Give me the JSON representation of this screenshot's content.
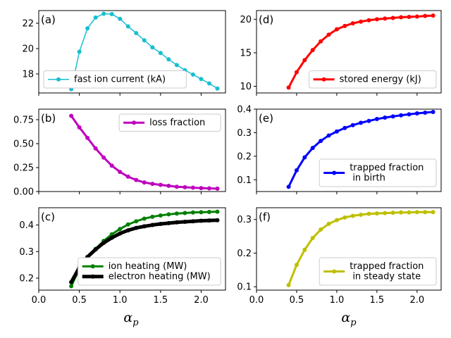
{
  "figure": {
    "x_axis_label": "α",
    "x_axis_label_sub": "p"
  },
  "chart_data": [
    {
      "id": "a",
      "panel_label": "(a)",
      "type": "line",
      "xlim": [
        0,
        2.3
      ],
      "ylim": [
        16.5,
        23.0
      ],
      "xticks": [
        0.0,
        0.5,
        1.0,
        1.5,
        2.0
      ],
      "xtick_labels": [
        "0.0",
        "0.5",
        "1.0",
        "1.5",
        "2.0"
      ],
      "yticks": [
        18,
        20,
        22
      ],
      "ytick_labels": [
        "18",
        "20",
        "22"
      ],
      "show_xtick_labels": false,
      "legend_position": "lower-left",
      "series": [
        {
          "name": "fast ion current (kA)",
          "color": "#17becf",
          "linewidth": 1.5,
          "marker_size": 3,
          "x": [
            0.4,
            0.5,
            0.6,
            0.7,
            0.8,
            0.9,
            1.0,
            1.1,
            1.2,
            1.3,
            1.4,
            1.5,
            1.6,
            1.7,
            1.8,
            1.9,
            2.0,
            2.1,
            2.2
          ],
          "y": [
            16.8,
            19.75,
            21.6,
            22.45,
            22.75,
            22.72,
            22.35,
            21.75,
            21.22,
            20.65,
            20.1,
            19.65,
            19.15,
            18.7,
            18.3,
            17.95,
            17.6,
            17.25,
            16.85
          ]
        }
      ]
    },
    {
      "id": "d",
      "panel_label": "(d)",
      "type": "line",
      "xlim": [
        0,
        2.3
      ],
      "ylim": [
        9.0,
        21.3
      ],
      "xticks": [
        0.0,
        0.5,
        1.0,
        1.5,
        2.0
      ],
      "xtick_labels": [
        "0.0",
        "0.5",
        "1.0",
        "1.5",
        "2.0"
      ],
      "yticks": [
        10,
        15,
        20
      ],
      "ytick_labels": [
        "10",
        "15",
        "20"
      ],
      "show_xtick_labels": false,
      "legend_position": "lower-right",
      "series": [
        {
          "name": "stored energy (kJ)",
          "color": "#ff0000",
          "linewidth": 3,
          "marker_size": 3,
          "x": [
            0.4,
            0.5,
            0.6,
            0.7,
            0.8,
            0.9,
            1.0,
            1.1,
            1.2,
            1.3,
            1.4,
            1.5,
            1.6,
            1.7,
            1.8,
            1.9,
            2.0,
            2.1,
            2.2
          ],
          "y": [
            9.8,
            12.1,
            13.9,
            15.4,
            16.7,
            17.7,
            18.5,
            19.0,
            19.4,
            19.65,
            19.85,
            20.0,
            20.1,
            20.2,
            20.3,
            20.35,
            20.4,
            20.5,
            20.55
          ]
        }
      ]
    },
    {
      "id": "b",
      "panel_label": "(b)",
      "type": "line",
      "xlim": [
        0,
        2.3
      ],
      "ylim": [
        0.0,
        0.86
      ],
      "xticks": [
        0.0,
        0.5,
        1.0,
        1.5,
        2.0
      ],
      "xtick_labels": [
        "0.0",
        "0.5",
        "1.0",
        "1.5",
        "2.0"
      ],
      "yticks": [
        0.0,
        0.25,
        0.5,
        0.75
      ],
      "ytick_labels": [
        "0.00",
        "0.25",
        "0.50",
        "0.75"
      ],
      "show_xtick_labels": false,
      "legend_position": "upper-right",
      "series": [
        {
          "name": "loss fraction",
          "color": "#bf00bf",
          "linewidth": 3,
          "marker_size": 3,
          "x": [
            0.4,
            0.5,
            0.6,
            0.7,
            0.8,
            0.9,
            1.0,
            1.1,
            1.2,
            1.3,
            1.4,
            1.5,
            1.6,
            1.7,
            1.8,
            1.9,
            2.0,
            2.1,
            2.2
          ],
          "y": [
            0.79,
            0.67,
            0.56,
            0.45,
            0.355,
            0.27,
            0.205,
            0.155,
            0.12,
            0.095,
            0.08,
            0.07,
            0.06,
            0.05,
            0.045,
            0.04,
            0.036,
            0.033,
            0.03
          ]
        }
      ]
    },
    {
      "id": "e",
      "panel_label": "(e)",
      "type": "line",
      "xlim": [
        0,
        2.3
      ],
      "ylim": [
        0.05,
        0.4
      ],
      "xticks": [
        0.0,
        0.5,
        1.0,
        1.5,
        2.0
      ],
      "xtick_labels": [
        "0.0",
        "0.5",
        "1.0",
        "1.5",
        "2.0"
      ],
      "yticks": [
        0.1,
        0.2,
        0.3,
        0.4
      ],
      "ytick_labels": [
        "0.1",
        "0.2",
        "0.3",
        "0.4"
      ],
      "show_xtick_labels": false,
      "legend_position": "lower-right",
      "series": [
        {
          "name": "trapped fraction\n in birth",
          "color": "#0000ff",
          "linewidth": 3,
          "marker_size": 3,
          "x": [
            0.4,
            0.5,
            0.6,
            0.7,
            0.8,
            0.9,
            1.0,
            1.1,
            1.2,
            1.3,
            1.4,
            1.5,
            1.6,
            1.7,
            1.8,
            1.9,
            2.0,
            2.1,
            2.2
          ],
          "y": [
            0.07,
            0.14,
            0.195,
            0.235,
            0.265,
            0.288,
            0.305,
            0.32,
            0.332,
            0.342,
            0.35,
            0.358,
            0.364,
            0.369,
            0.374,
            0.378,
            0.382,
            0.385,
            0.388
          ]
        }
      ]
    },
    {
      "id": "c",
      "panel_label": "(c)",
      "type": "line",
      "xlim": [
        0,
        2.3
      ],
      "ylim": [
        0.155,
        0.465
      ],
      "xticks": [
        0.0,
        0.5,
        1.0,
        1.5,
        2.0
      ],
      "xtick_labels": [
        "0.0",
        "0.5",
        "1.0",
        "1.5",
        "2.0"
      ],
      "yticks": [
        0.2,
        0.3,
        0.4
      ],
      "ytick_labels": [
        "0.2",
        "0.3",
        "0.4"
      ],
      "show_xtick_labels": true,
      "legend_position": "lower-right",
      "series": [
        {
          "name": "ion heating (MW)",
          "color": "#008000",
          "linewidth": 3,
          "marker_size": 3,
          "x": [
            0.4,
            0.5,
            0.6,
            0.7,
            0.8,
            0.9,
            1.0,
            1.1,
            1.2,
            1.3,
            1.4,
            1.5,
            1.6,
            1.7,
            1.8,
            1.9,
            2.0,
            2.1,
            2.2
          ],
          "y": [
            0.17,
            0.235,
            0.278,
            0.31,
            0.34,
            0.365,
            0.385,
            0.402,
            0.414,
            0.424,
            0.431,
            0.436,
            0.44,
            0.443,
            0.445,
            0.447,
            0.448,
            0.449,
            0.45
          ]
        },
        {
          "name": "electron heating (MW)",
          "color": "#000000",
          "linewidth": 5,
          "marker_size": 3,
          "x": [
            0.4,
            0.5,
            0.6,
            0.7,
            0.8,
            0.9,
            1.0,
            1.1,
            1.2,
            1.3,
            1.4,
            1.5,
            1.6,
            1.7,
            1.8,
            1.9,
            2.0,
            2.1,
            2.2
          ],
          "y": [
            0.185,
            0.24,
            0.28,
            0.308,
            0.333,
            0.352,
            0.368,
            0.38,
            0.389,
            0.395,
            0.4,
            0.404,
            0.407,
            0.41,
            0.412,
            0.414,
            0.416,
            0.417,
            0.418
          ]
        }
      ]
    },
    {
      "id": "f",
      "panel_label": "(f)",
      "type": "line",
      "xlim": [
        0,
        2.3
      ],
      "ylim": [
        0.09,
        0.335
      ],
      "xticks": [
        0.0,
        0.5,
        1.0,
        1.5,
        2.0
      ],
      "xtick_labels": [
        "0.0",
        "0.5",
        "1.0",
        "1.5",
        "2.0"
      ],
      "yticks": [
        0.1,
        0.2,
        0.3
      ],
      "ytick_labels": [
        "0.1",
        "0.2",
        "0.3"
      ],
      "show_xtick_labels": true,
      "legend_position": "lower-right",
      "series": [
        {
          "name": "trapped fraction\n in steady state",
          "color": "#bfbf00",
          "linewidth": 3,
          "marker_size": 3,
          "x": [
            0.4,
            0.5,
            0.6,
            0.7,
            0.8,
            0.9,
            1.0,
            1.1,
            1.2,
            1.3,
            1.4,
            1.5,
            1.6,
            1.7,
            1.8,
            1.9,
            2.0,
            2.1,
            2.2
          ],
          "y": [
            0.105,
            0.165,
            0.21,
            0.245,
            0.27,
            0.287,
            0.298,
            0.306,
            0.311,
            0.314,
            0.317,
            0.318,
            0.319,
            0.32,
            0.321,
            0.321,
            0.322,
            0.322,
            0.322
          ]
        }
      ]
    }
  ]
}
